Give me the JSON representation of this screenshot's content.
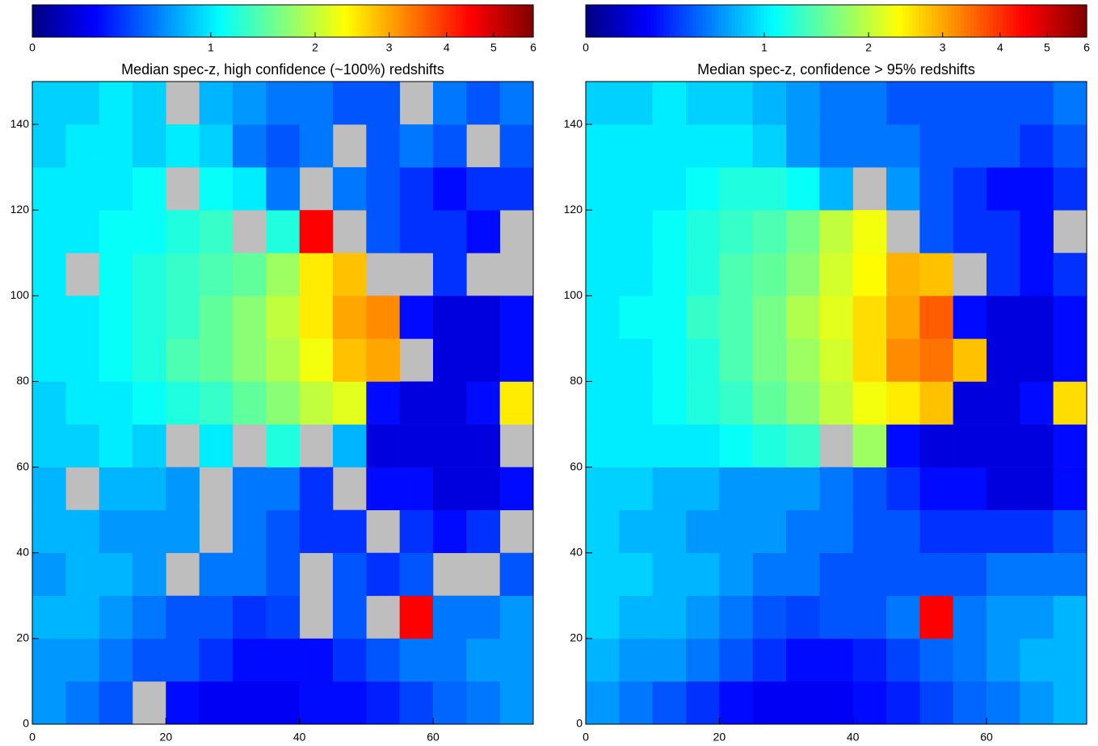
{
  "chart_data": [
    {
      "type": "heatmap",
      "title": "Median spec-z, high confidence (~100%) redshifts",
      "xlim": [
        0,
        75
      ],
      "ylim": [
        0,
        150
      ],
      "xticks": [
        0,
        20,
        40,
        60
      ],
      "yticks": [
        0,
        20,
        40,
        60,
        80,
        100,
        120,
        140
      ],
      "missing_color": "#bebebe",
      "colormap": "jet",
      "colorbar": {
        "lim": [
          0,
          6
        ],
        "ticks": [
          0,
          1,
          2,
          3,
          4,
          5,
          6
        ],
        "scale": "log1p"
      },
      "z": [
        [
          0.7,
          0.6,
          0.5,
          null,
          0.3,
          0.25,
          0.25,
          0.25,
          0.3,
          0.3,
          0.35,
          0.45,
          0.55,
          0.6,
          0.7
        ],
        [
          0.7,
          0.7,
          0.6,
          0.5,
          0.5,
          0.4,
          0.3,
          0.3,
          0.3,
          0.4,
          0.5,
          0.6,
          0.6,
          0.7,
          0.7
        ],
        [
          0.8,
          0.8,
          0.7,
          0.6,
          0.5,
          0.5,
          0.4,
          0.45,
          null,
          0.5,
          null,
          4.5,
          0.6,
          0.6,
          0.7
        ],
        [
          0.7,
          0.8,
          0.8,
          0.7,
          null,
          0.6,
          0.6,
          0.5,
          null,
          0.5,
          0.4,
          0.5,
          null,
          null,
          0.5
        ],
        [
          0.8,
          0.8,
          0.7,
          0.7,
          0.7,
          null,
          0.6,
          0.5,
          0.4,
          0.4,
          null,
          0.4,
          0.3,
          0.4,
          null
        ],
        [
          0.8,
          null,
          0.8,
          0.8,
          0.7,
          null,
          0.6,
          0.6,
          0.4,
          null,
          0.3,
          0.3,
          0.2,
          0.2,
          0.3
        ],
        [
          0.9,
          0.9,
          1.0,
          0.9,
          null,
          1.0,
          null,
          1.2,
          null,
          0.8,
          0.2,
          0.2,
          0.2,
          0.2,
          null
        ],
        [
          0.9,
          1.0,
          1.0,
          1.1,
          1.2,
          1.3,
          1.5,
          1.7,
          2.0,
          2.2,
          0.3,
          0.2,
          0.2,
          0.3,
          2.5
        ],
        [
          1.0,
          1.0,
          1.1,
          1.2,
          1.4,
          1.5,
          1.7,
          1.9,
          2.3,
          2.8,
          3.0,
          null,
          0.2,
          0.2,
          0.3
        ],
        [
          1.0,
          1.0,
          1.1,
          1.2,
          1.3,
          1.5,
          1.7,
          2.0,
          2.5,
          3.0,
          3.2,
          0.3,
          0.2,
          0.2,
          0.3
        ],
        [
          1.0,
          null,
          1.1,
          1.2,
          1.3,
          1.4,
          1.5,
          1.8,
          2.5,
          2.8,
          null,
          null,
          0.4,
          null,
          null
        ],
        [
          1.0,
          1.0,
          1.1,
          1.1,
          1.2,
          1.3,
          null,
          1.2,
          4.5,
          null,
          0.5,
          0.4,
          0.4,
          0.3,
          null
        ],
        [
          1.0,
          1.0,
          1.0,
          1.1,
          null,
          1.1,
          1.0,
          0.6,
          null,
          0.6,
          0.5,
          0.4,
          0.3,
          0.4,
          0.4
        ],
        [
          0.9,
          1.0,
          1.0,
          0.9,
          1.0,
          0.9,
          0.6,
          0.5,
          0.6,
          null,
          0.5,
          0.6,
          0.5,
          null,
          0.5
        ],
        [
          0.9,
          0.9,
          1.0,
          0.9,
          null,
          0.8,
          0.7,
          0.6,
          0.6,
          0.5,
          0.5,
          null,
          0.6,
          0.5,
          0.6
        ]
      ]
    },
    {
      "type": "heatmap",
      "title": "Median spec-z, confidence > 95% redshifts",
      "xlim": [
        0,
        75
      ],
      "ylim": [
        0,
        150
      ],
      "xticks": [
        0,
        20,
        40,
        60
      ],
      "yticks": [
        0,
        20,
        40,
        60,
        80,
        100,
        120,
        140
      ],
      "missing_color": "#bebebe",
      "colormap": "jet",
      "colorbar": {
        "lim": [
          0,
          6
        ],
        "ticks": [
          0,
          1,
          2,
          3,
          4,
          5,
          6
        ],
        "scale": "log1p"
      },
      "z": [
        [
          0.7,
          0.6,
          0.5,
          0.4,
          0.3,
          0.25,
          0.25,
          0.25,
          0.3,
          0.35,
          0.45,
          0.55,
          0.6,
          0.7,
          0.8
        ],
        [
          0.8,
          0.7,
          0.7,
          0.6,
          0.5,
          0.4,
          0.3,
          0.3,
          0.35,
          0.45,
          0.55,
          0.6,
          0.7,
          0.8,
          0.8
        ],
        [
          0.9,
          0.8,
          0.8,
          0.7,
          0.6,
          0.5,
          0.45,
          0.5,
          0.5,
          0.6,
          4.5,
          0.6,
          0.7,
          0.7,
          0.8
        ],
        [
          0.9,
          0.9,
          0.8,
          0.8,
          0.7,
          0.6,
          0.6,
          0.5,
          0.5,
          0.5,
          0.5,
          0.5,
          0.6,
          0.6,
          0.6
        ],
        [
          0.9,
          0.8,
          0.8,
          0.7,
          0.7,
          0.7,
          0.6,
          0.6,
          0.5,
          0.5,
          0.4,
          0.4,
          0.4,
          0.4,
          0.5
        ],
        [
          0.9,
          0.9,
          0.8,
          0.8,
          0.7,
          0.7,
          0.7,
          0.6,
          0.5,
          0.4,
          0.3,
          0.3,
          0.2,
          0.2,
          0.3
        ],
        [
          1.0,
          1.0,
          1.0,
          1.0,
          1.1,
          1.2,
          1.3,
          null,
          1.8,
          0.3,
          0.2,
          0.2,
          0.2,
          0.2,
          0.3
        ],
        [
          1.0,
          1.0,
          1.1,
          1.2,
          1.3,
          1.5,
          1.7,
          2.0,
          2.3,
          2.5,
          2.8,
          0.2,
          0.2,
          0.3,
          2.6
        ],
        [
          1.0,
          1.0,
          1.1,
          1.2,
          1.4,
          1.6,
          1.8,
          2.1,
          2.6,
          3.2,
          3.4,
          2.8,
          0.2,
          0.2,
          0.3
        ],
        [
          1.0,
          1.1,
          1.1,
          1.3,
          1.4,
          1.6,
          1.9,
          2.2,
          2.6,
          3.0,
          3.6,
          0.3,
          0.2,
          0.2,
          0.3
        ],
        [
          1.0,
          1.0,
          1.1,
          1.2,
          1.4,
          1.5,
          1.7,
          2.1,
          2.4,
          2.9,
          2.8,
          null,
          0.4,
          0.3,
          0.4
        ],
        [
          1.0,
          1.0,
          1.1,
          1.2,
          1.3,
          1.4,
          1.6,
          2.0,
          2.3,
          null,
          0.5,
          0.4,
          0.4,
          0.3,
          null
        ],
        [
          1.0,
          1.0,
          1.0,
          1.1,
          1.2,
          1.2,
          1.1,
          0.8,
          null,
          0.7,
          0.5,
          0.4,
          0.3,
          0.3,
          0.4
        ],
        [
          1.0,
          1.0,
          1.0,
          1.0,
          1.0,
          0.9,
          0.7,
          0.6,
          0.6,
          0.6,
          0.5,
          0.5,
          0.5,
          0.4,
          0.5
        ],
        [
          0.9,
          0.9,
          1.0,
          0.9,
          0.9,
          0.8,
          0.7,
          0.6,
          0.6,
          0.5,
          0.5,
          0.5,
          0.5,
          0.5,
          0.6
        ]
      ]
    }
  ]
}
